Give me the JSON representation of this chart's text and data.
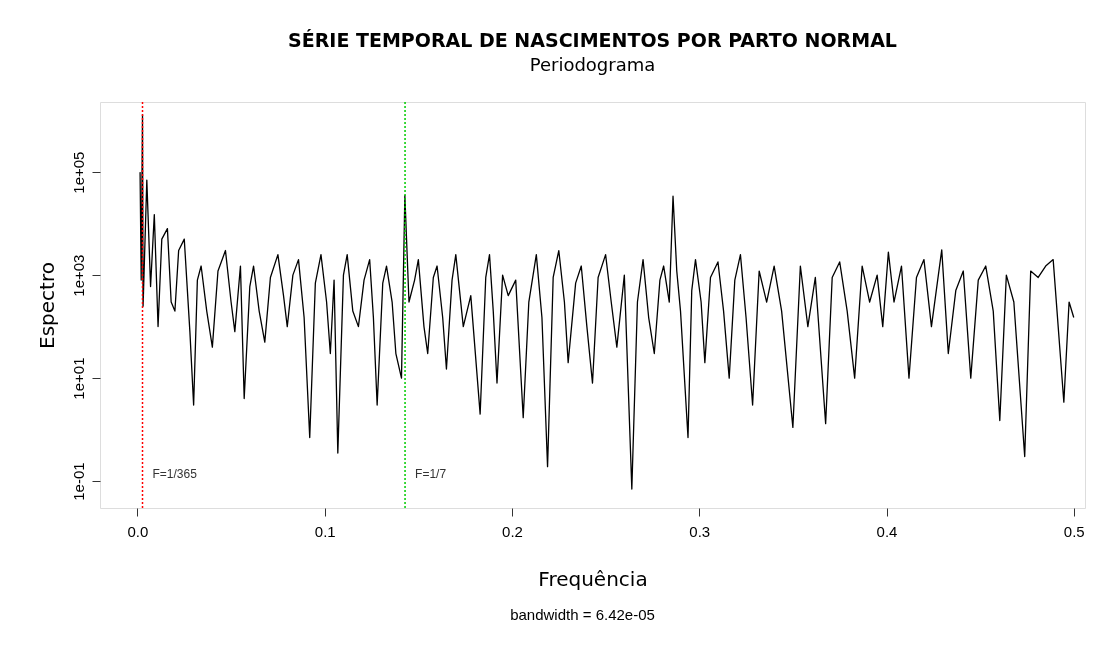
{
  "chart_data": {
    "type": "line",
    "title": "SÉRIE TEMPORAL DE NASCIMENTOS POR PARTO NORMAL",
    "subtitle": "Periodograma",
    "xlabel": "Frequência",
    "ylabel": "Espectro",
    "annotations": [
      "bandwidth = 6.42e-05",
      {
        "text": "F=1/365",
        "x": 0.0027,
        "y": 0.1
      },
      {
        "text": "F=1/7",
        "x": 0.1429,
        "y": 0.1
      }
    ],
    "log": "y",
    "grid": false,
    "marker": "none",
    "line_style": "solid",
    "xlim": [
      -0.02,
      0.506
    ],
    "ylim": [
      0.03,
      2300000
    ],
    "xticks": [
      {
        "value": 0,
        "label": "0.0"
      },
      0.1,
      0.2,
      0.3,
      0.4,
      0.5
    ],
    "yticks": [
      {
        "value": 0.1,
        "label": "1e-01"
      },
      {
        "value": 10,
        "label": "1e+01"
      },
      {
        "value": 1000,
        "label": "1e+03"
      },
      {
        "value": 100000,
        "label": "1e+05"
      }
    ],
    "ref_lines": [
      {
        "axis": "x",
        "value": 0.0027,
        "color": "#ff0000",
        "line_style": "dotted"
      },
      {
        "axis": "x",
        "value": 0.1429,
        "color": "#00cc00",
        "line_style": "dotted"
      }
    ],
    "series": [
      {
        "color": "#000000",
        "x": [
          0.0014,
          0.002,
          0.0027,
          0.003,
          0.005,
          0.007,
          0.009,
          0.011,
          0.013,
          0.016,
          0.018,
          0.02,
          0.022,
          0.025,
          0.028,
          0.03,
          0.032,
          0.034,
          0.037,
          0.04,
          0.043,
          0.047,
          0.05,
          0.052,
          0.055,
          0.057,
          0.06,
          0.062,
          0.065,
          0.068,
          0.071,
          0.075,
          0.078,
          0.08,
          0.083,
          0.086,
          0.089,
          0.092,
          0.095,
          0.098,
          0.101,
          0.103,
          0.105,
          0.107,
          0.11,
          0.112,
          0.115,
          0.118,
          0.121,
          0.124,
          0.126,
          0.128,
          0.131,
          0.133,
          0.136,
          0.138,
          0.141,
          0.1428,
          0.145,
          0.148,
          0.15,
          0.153,
          0.155,
          0.158,
          0.16,
          0.163,
          0.165,
          0.168,
          0.17,
          0.174,
          0.178,
          0.183,
          0.186,
          0.188,
          0.19,
          0.192,
          0.195,
          0.198,
          0.202,
          0.206,
          0.209,
          0.213,
          0.216,
          0.219,
          0.222,
          0.225,
          0.228,
          0.23,
          0.234,
          0.237,
          0.24,
          0.243,
          0.246,
          0.25,
          0.253,
          0.256,
          0.26,
          0.264,
          0.267,
          0.27,
          0.273,
          0.276,
          0.279,
          0.281,
          0.284,
          0.286,
          0.288,
          0.29,
          0.294,
          0.296,
          0.298,
          0.301,
          0.303,
          0.306,
          0.31,
          0.313,
          0.316,
          0.319,
          0.322,
          0.325,
          0.3285,
          0.332,
          0.336,
          0.34,
          0.344,
          0.35,
          0.354,
          0.358,
          0.362,
          0.3675,
          0.371,
          0.375,
          0.379,
          0.383,
          0.387,
          0.391,
          0.395,
          0.398,
          0.401,
          0.404,
          0.408,
          0.412,
          0.416,
          0.42,
          0.424,
          0.4295,
          0.433,
          0.437,
          0.441,
          0.445,
          0.449,
          0.453,
          0.457,
          0.4605,
          0.464,
          0.468,
          0.4738,
          0.477,
          0.481,
          0.485,
          0.489,
          0.4947,
          0.4975,
          0.5
        ],
        "values": [
          100000,
          800,
          1300000,
          250,
          70000,
          600,
          15000,
          100,
          5000,
          8000,
          300,
          200,
          3000,
          5000,
          80,
          3,
          800,
          1500,
          200,
          40,
          1200,
          3000,
          300,
          80,
          1500,
          4,
          600,
          1500,
          200,
          50,
          900,
          2500,
          400,
          100,
          1000,
          2000,
          150,
          0.7,
          700,
          2500,
          300,
          30,
          800,
          0.35,
          1000,
          2500,
          200,
          100,
          800,
          2000,
          150,
          3,
          700,
          1500,
          300,
          30,
          10,
          35000,
          300,
          800,
          2000,
          100,
          30,
          900,
          1500,
          150,
          15,
          800,
          2500,
          100,
          400,
          2,
          900,
          2500,
          200,
          8,
          1000,
          400,
          800,
          1.7,
          300,
          2500,
          150,
          0.19,
          900,
          3000,
          300,
          20,
          700,
          1500,
          100,
          8,
          900,
          2500,
          300,
          40,
          1000,
          0.07,
          300,
          2000,
          150,
          30,
          800,
          1500,
          300,
          34000,
          1200,
          200,
          0.7,
          500,
          2000,
          300,
          20,
          900,
          1800,
          200,
          10,
          800,
          2500,
          150,
          3,
          1200,
          300,
          1500,
          200,
          1.1,
          1500,
          100,
          900,
          1.3,
          900,
          1800,
          200,
          10,
          1500,
          300,
          1000,
          100,
          2800,
          300,
          1500,
          10,
          900,
          2000,
          100,
          3100,
          30,
          500,
          1200,
          10,
          800,
          1500,
          200,
          1.5,
          1000,
          300,
          0.3,
          1200,
          900,
          1500,
          2000,
          3.4,
          300,
          150
        ]
      }
    ]
  }
}
